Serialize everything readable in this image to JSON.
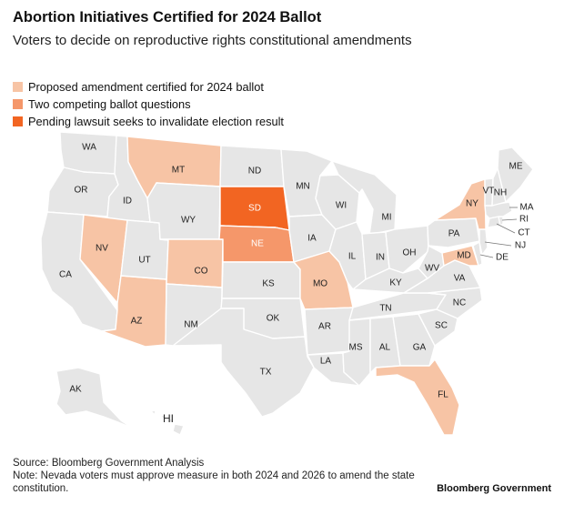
{
  "header": {
    "title": "Abortion Initiatives Certified for 2024 Ballot",
    "subtitle": "Voters to decide on reproductive rights constitutional amendments"
  },
  "legend": [
    {
      "label": "Proposed amendment certified for 2024 ballot",
      "color": "#f7c4a5"
    },
    {
      "label": "Two competing ballot questions",
      "color": "#f5976a"
    },
    {
      "label": "Pending lawsuit seeks to invalidate election result",
      "color": "#f26522"
    }
  ],
  "colors": {
    "default": "#e6e6e6",
    "certified": "#f7c4a5",
    "competing": "#f5976a",
    "lawsuit": "#f26522"
  },
  "states": [
    {
      "abbr": "WA",
      "category": "default"
    },
    {
      "abbr": "OR",
      "category": "default"
    },
    {
      "abbr": "CA",
      "category": "default"
    },
    {
      "abbr": "ID",
      "category": "default"
    },
    {
      "abbr": "NV",
      "category": "certified"
    },
    {
      "abbr": "AZ",
      "category": "certified"
    },
    {
      "abbr": "UT",
      "category": "default"
    },
    {
      "abbr": "MT",
      "category": "certified"
    },
    {
      "abbr": "WY",
      "category": "default"
    },
    {
      "abbr": "CO",
      "category": "certified"
    },
    {
      "abbr": "NM",
      "category": "default"
    },
    {
      "abbr": "ND",
      "category": "default"
    },
    {
      "abbr": "SD",
      "category": "lawsuit"
    },
    {
      "abbr": "NE",
      "category": "competing"
    },
    {
      "abbr": "KS",
      "category": "default"
    },
    {
      "abbr": "OK",
      "category": "default"
    },
    {
      "abbr": "TX",
      "category": "default"
    },
    {
      "abbr": "MN",
      "category": "default"
    },
    {
      "abbr": "IA",
      "category": "default"
    },
    {
      "abbr": "MO",
      "category": "certified"
    },
    {
      "abbr": "AR",
      "category": "default"
    },
    {
      "abbr": "LA",
      "category": "default"
    },
    {
      "abbr": "WI",
      "category": "default"
    },
    {
      "abbr": "IL",
      "category": "default"
    },
    {
      "abbr": "MI",
      "category": "default"
    },
    {
      "abbr": "IN",
      "category": "default"
    },
    {
      "abbr": "OH",
      "category": "default"
    },
    {
      "abbr": "KY",
      "category": "default"
    },
    {
      "abbr": "TN",
      "category": "default"
    },
    {
      "abbr": "MS",
      "category": "default"
    },
    {
      "abbr": "AL",
      "category": "default"
    },
    {
      "abbr": "GA",
      "category": "default"
    },
    {
      "abbr": "FL",
      "category": "certified"
    },
    {
      "abbr": "SC",
      "category": "default"
    },
    {
      "abbr": "NC",
      "category": "default"
    },
    {
      "abbr": "VA",
      "category": "default"
    },
    {
      "abbr": "WV",
      "category": "default"
    },
    {
      "abbr": "PA",
      "category": "default"
    },
    {
      "abbr": "NY",
      "category": "certified"
    },
    {
      "abbr": "MD",
      "category": "certified"
    },
    {
      "abbr": "DE",
      "category": "default"
    },
    {
      "abbr": "NJ",
      "category": "default"
    },
    {
      "abbr": "CT",
      "category": "default"
    },
    {
      "abbr": "RI",
      "category": "default"
    },
    {
      "abbr": "MA",
      "category": "default"
    },
    {
      "abbr": "VT",
      "category": "default"
    },
    {
      "abbr": "NH",
      "category": "default"
    },
    {
      "abbr": "ME",
      "category": "default"
    },
    {
      "abbr": "AK",
      "category": "default"
    },
    {
      "abbr": "HI",
      "category": "default"
    }
  ],
  "footer": {
    "source": "Source: Bloomberg Government Analysis",
    "note": "Note: Nevada voters must approve measure in both 2024 and 2026 to amend the state constitution."
  },
  "brand": "Bloomberg Government"
}
